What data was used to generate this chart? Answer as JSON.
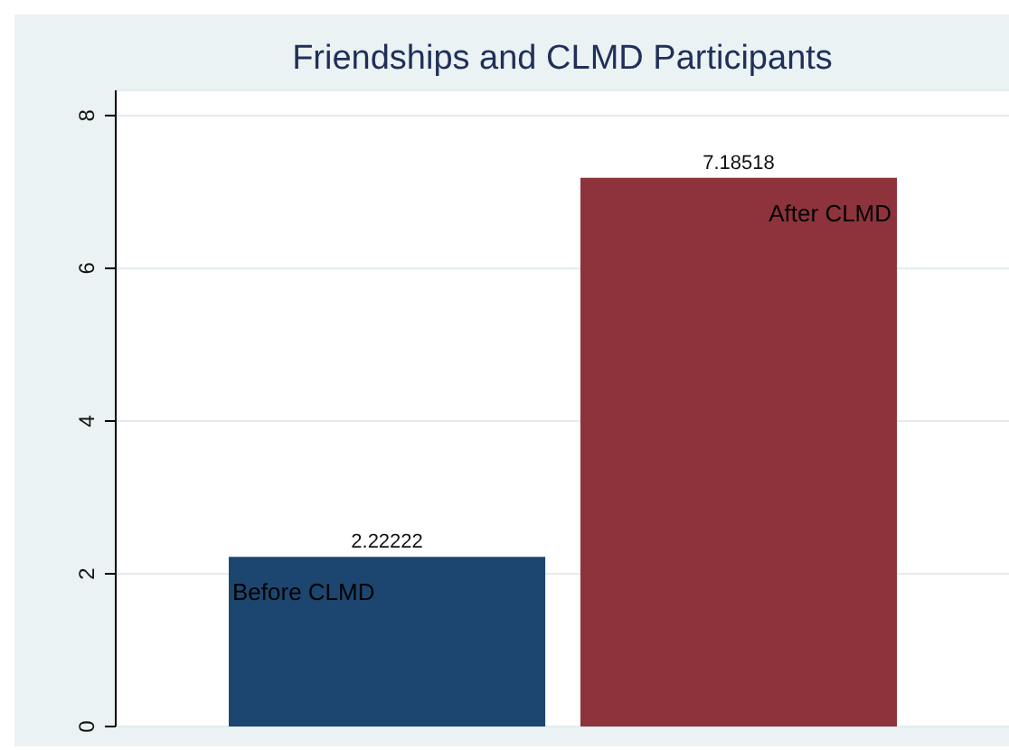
{
  "chart_data": {
    "type": "bar",
    "title": "Friendships and CLMD Participants",
    "categories": [
      "Before CLMD",
      "After CLMD"
    ],
    "values": [
      2.22222,
      7.18518
    ],
    "colors": [
      "#1c466f",
      "#8e333b"
    ],
    "data_labels": true,
    "ylim": [
      0,
      8.33
    ],
    "yticks": [
      0,
      2,
      4,
      6,
      8
    ],
    "grid": "y",
    "legend": false
  }
}
